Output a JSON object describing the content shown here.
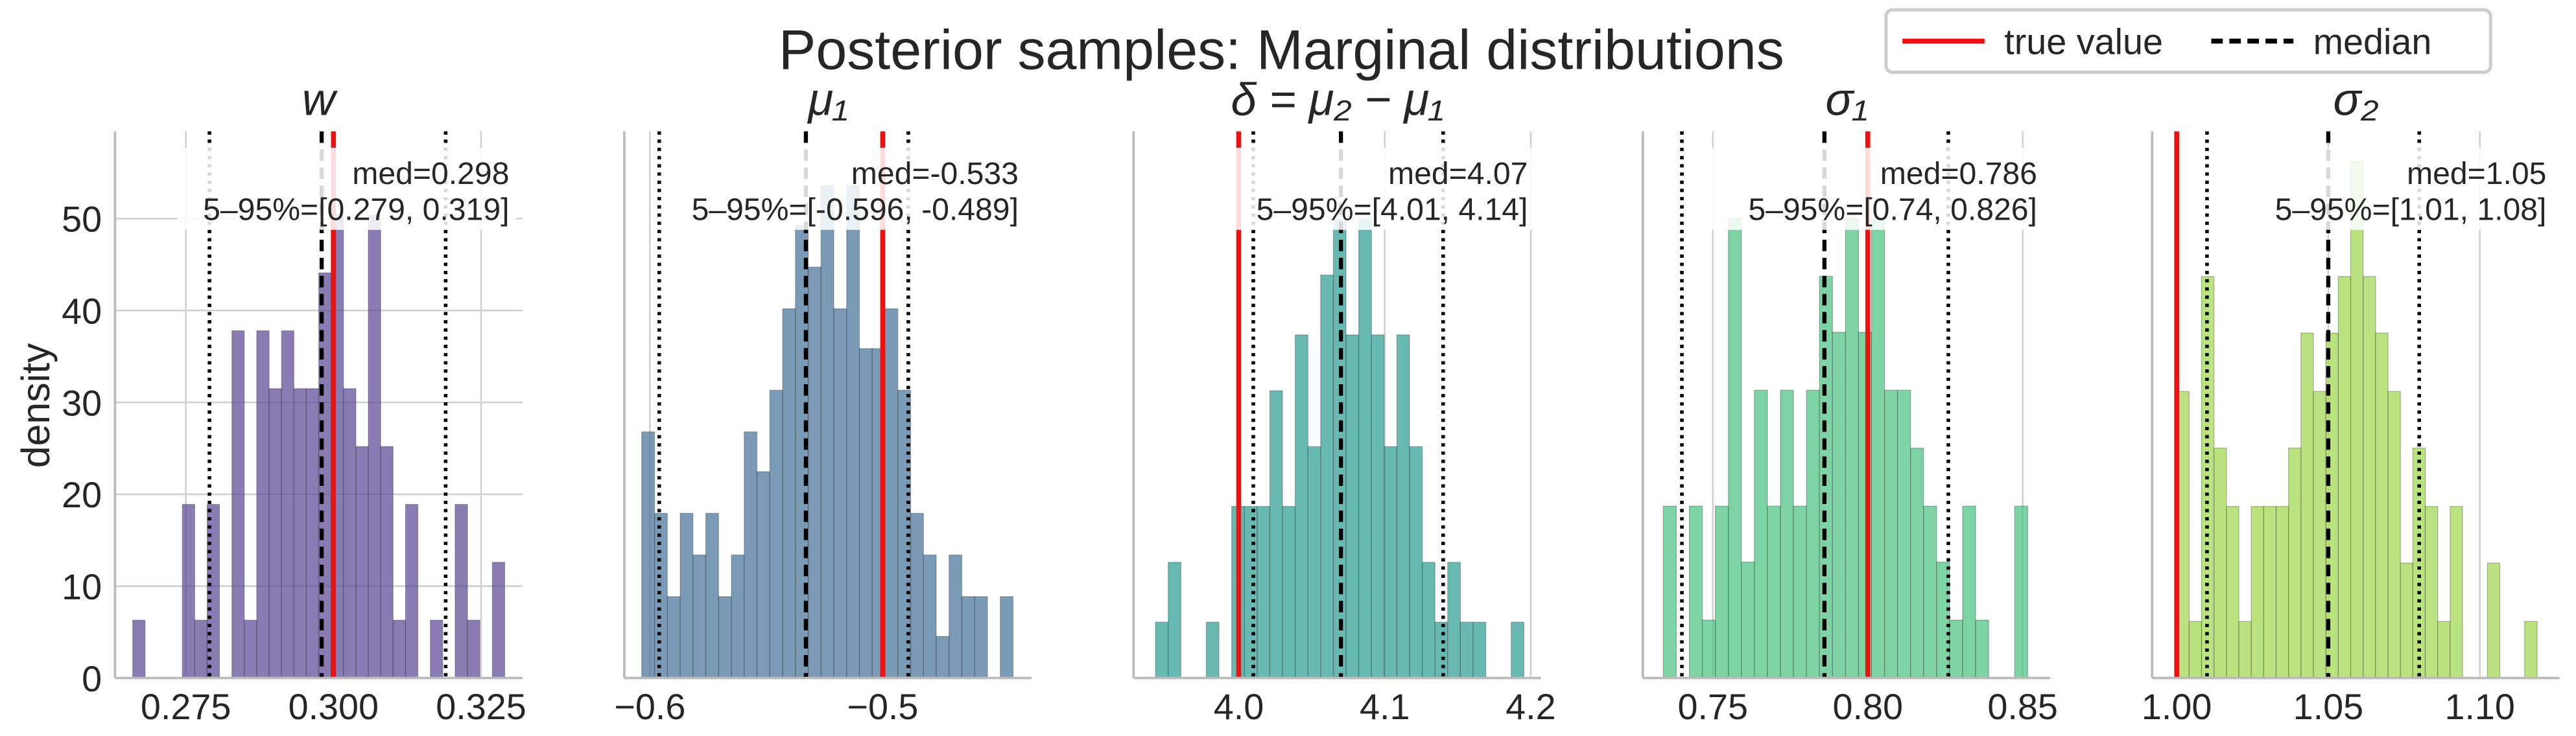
{
  "figure": {
    "title": "Posterior samples: Marginal distributions",
    "legend": {
      "loc": "upper right",
      "entries": [
        {
          "name": "true value",
          "color": "#ee1111",
          "style": "solid"
        },
        {
          "name": "median",
          "color": "#000000",
          "style": "dashed"
        }
      ]
    }
  },
  "chart_data": [
    {
      "type": "histogram",
      "title": "w",
      "ylabel": "density",
      "color": "#5b4a95",
      "bins": [
        0.266,
        0.2681,
        0.2702,
        0.2723,
        0.2744,
        0.2765,
        0.2786,
        0.2807,
        0.2828,
        0.2849,
        0.287,
        0.2891,
        0.2912,
        0.2933,
        0.2954,
        0.2975,
        0.2996,
        0.3017,
        0.3038,
        0.3059,
        0.308,
        0.3101,
        0.3122,
        0.3143,
        0.3164,
        0.3185,
        0.3206,
        0.3227,
        0.3248,
        0.3269,
        0.329
      ],
      "values": [
        6.3,
        0,
        0,
        0,
        18.9,
        6.3,
        18.9,
        0,
        37.8,
        6.3,
        37.8,
        31.5,
        37.8,
        31.5,
        31.5,
        44.1,
        50.4,
        31.5,
        25.2,
        50.4,
        25.2,
        6.3,
        18.9,
        0,
        6.3,
        0,
        18.9,
        6.3,
        0,
        12.6
      ],
      "xlim": [
        0.263,
        0.332
      ],
      "xticks": [
        0.275,
        {
          "value": 0.3,
          "label": "0.300"
        },
        0.325
      ],
      "ylim": [
        0,
        59.5
      ],
      "yticks": [
        0,
        10,
        20,
        30,
        40,
        50
      ],
      "grid": true,
      "true_value": 0.3,
      "median": 0.298,
      "q05": 0.279,
      "q95": 0.319,
      "annotation": [
        "med=0.298",
        "5–95%=[0.279, 0.319]"
      ]
    },
    {
      "type": "histogram",
      "title": "μ₁",
      "color": "#46739a",
      "bins": [
        -0.6035,
        -0.598,
        -0.5925,
        -0.587,
        -0.5815,
        -0.576,
        -0.5705,
        -0.565,
        -0.5595,
        -0.554,
        -0.5485,
        -0.543,
        -0.5375,
        -0.532,
        -0.5265,
        -0.521,
        -0.5155,
        -0.51,
        -0.5045,
        -0.499,
        -0.4935,
        -0.488,
        -0.4825,
        -0.477,
        -0.4715,
        -0.466,
        -0.4605,
        -0.455,
        -0.4495,
        -0.444
      ],
      "values": [
        13.6,
        9.1,
        4.5,
        9.1,
        6.8,
        9.1,
        4.5,
        6.8,
        13.6,
        11.4,
        15.9,
        20.4,
        25.0,
        22.7,
        27.2,
        20.4,
        27.2,
        18.2,
        18.2,
        20.4,
        15.9,
        9.1,
        6.8,
        2.3,
        6.8,
        4.5,
        4.5,
        0,
        4.5
      ],
      "xlim": [
        -0.611,
        -0.436
      ],
      "xticks": [
        {
          "value": -0.6,
          "label": "−0.6"
        },
        {
          "value": -0.5,
          "label": "−0.5"
        }
      ],
      "ylim": [
        0,
        30.2
      ],
      "grid": true,
      "true_value": -0.5,
      "median": -0.533,
      "q05": -0.596,
      "q95": -0.489,
      "annotation": [
        "med=-0.533",
        "5–95%=[-0.596, -0.489]"
      ]
    },
    {
      "type": "histogram",
      "title": "δ = μ₂ − μ₁",
      "color": "#2f9e96",
      "bins": [
        3.943,
        3.9517,
        3.9604,
        3.9691,
        3.9778,
        3.9865,
        3.9952,
        4.0039,
        4.0126,
        4.0213,
        4.03,
        4.0387,
        4.0474,
        4.0561,
        4.0648,
        4.0735,
        4.0822,
        4.0909,
        4.0996,
        4.1083,
        4.117,
        4.1257,
        4.1344,
        4.1431,
        4.1518,
        4.1605,
        4.1692,
        4.1779,
        4.1866,
        4.1953
      ],
      "values": [
        1.4,
        2.9,
        0,
        0,
        1.4,
        0,
        4.3,
        4.3,
        4.3,
        7.2,
        4.3,
        8.6,
        5.8,
        10.1,
        11.5,
        8.6,
        11.5,
        8.6,
        5.8,
        8.6,
        5.8,
        2.9,
        1.4,
        2.9,
        1.4,
        1.4,
        0,
        0,
        1.4
      ],
      "xlim": [
        3.928,
        4.207
      ],
      "xticks": [
        {
          "value": 4.0,
          "label": "4.0"
        },
        4.1,
        4.2
      ],
      "ylim": [
        0,
        13.7
      ],
      "grid": true,
      "true_value": 4.0,
      "median": 4.07,
      "q05": 4.01,
      "q95": 4.14,
      "annotation": [
        "med=4.07",
        "5–95%=[4.01, 4.14]"
      ]
    },
    {
      "type": "histogram",
      "title": "σ₁",
      "color": "#4cc282",
      "bins": [
        0.734,
        0.7382,
        0.7424,
        0.7466,
        0.7508,
        0.755,
        0.7592,
        0.7634,
        0.7676,
        0.7718,
        0.776,
        0.7802,
        0.7844,
        0.7886,
        0.7928,
        0.797,
        0.8012,
        0.8054,
        0.8096,
        0.8138,
        0.818,
        0.8222,
        0.8264,
        0.8306,
        0.8348,
        0.839,
        0.8432,
        0.8474,
        0.8516,
        0.8558
      ],
      "values": [
        8.9,
        0,
        8.9,
        3.0,
        8.9,
        23.8,
        6.0,
        14.9,
        8.9,
        14.9,
        8.9,
        14.9,
        20.8,
        17.9,
        23.8,
        17.9,
        23.8,
        14.9,
        14.9,
        11.9,
        8.9,
        6.0,
        3.0,
        8.9,
        3.0,
        0,
        0,
        8.9,
        0
      ],
      "xlim": [
        0.7274,
        0.8589
      ],
      "xticks": [
        0.75,
        {
          "value": 0.8,
          "label": "0.80"
        },
        0.85
      ],
      "ylim": [
        0,
        28.3
      ],
      "grid": true,
      "true_value": 0.8,
      "median": 0.786,
      "q05": 0.74,
      "q95": 0.826,
      "annotation": [
        "med=0.786",
        "5–95%=[0.74, 0.826]"
      ]
    },
    {
      "type": "histogram",
      "title": "σ₂",
      "color": "#9fd84f",
      "bins": [
        1.0,
        1.0041,
        1.0082,
        1.0123,
        1.0164,
        1.0205,
        1.0246,
        1.0287,
        1.0328,
        1.0369,
        1.041,
        1.0451,
        1.0492,
        1.0533,
        1.0574,
        1.0615,
        1.0656,
        1.0697,
        1.0738,
        1.0779,
        1.082,
        1.0861,
        1.0902,
        1.0943,
        1.0984,
        1.1025,
        1.1066,
        1.1107,
        1.1148,
        1.1189
      ],
      "values": [
        15.2,
        3.0,
        21.3,
        12.2,
        9.1,
        3.0,
        9.1,
        9.1,
        9.1,
        12.2,
        18.3,
        15.2,
        18.3,
        21.3,
        27.4,
        21.3,
        18.3,
        15.2,
        6.1,
        12.2,
        9.1,
        3.0,
        9.1,
        0,
        0,
        6.1,
        0,
        0,
        3.0
      ],
      "xlim": [
        0.9919,
        1.1263
      ],
      "xticks": [
        {
          "value": 1.0,
          "label": "1.00"
        },
        1.05,
        {
          "value": 1.1,
          "label": "1.10"
        }
      ],
      "ylim": [
        0,
        29
      ],
      "grid": true,
      "true_value": 1.0,
      "median": 1.05,
      "q05": 1.01,
      "q95": 1.08,
      "annotation": [
        "med=1.05",
        "5–95%=[1.01, 1.08]"
      ]
    }
  ]
}
